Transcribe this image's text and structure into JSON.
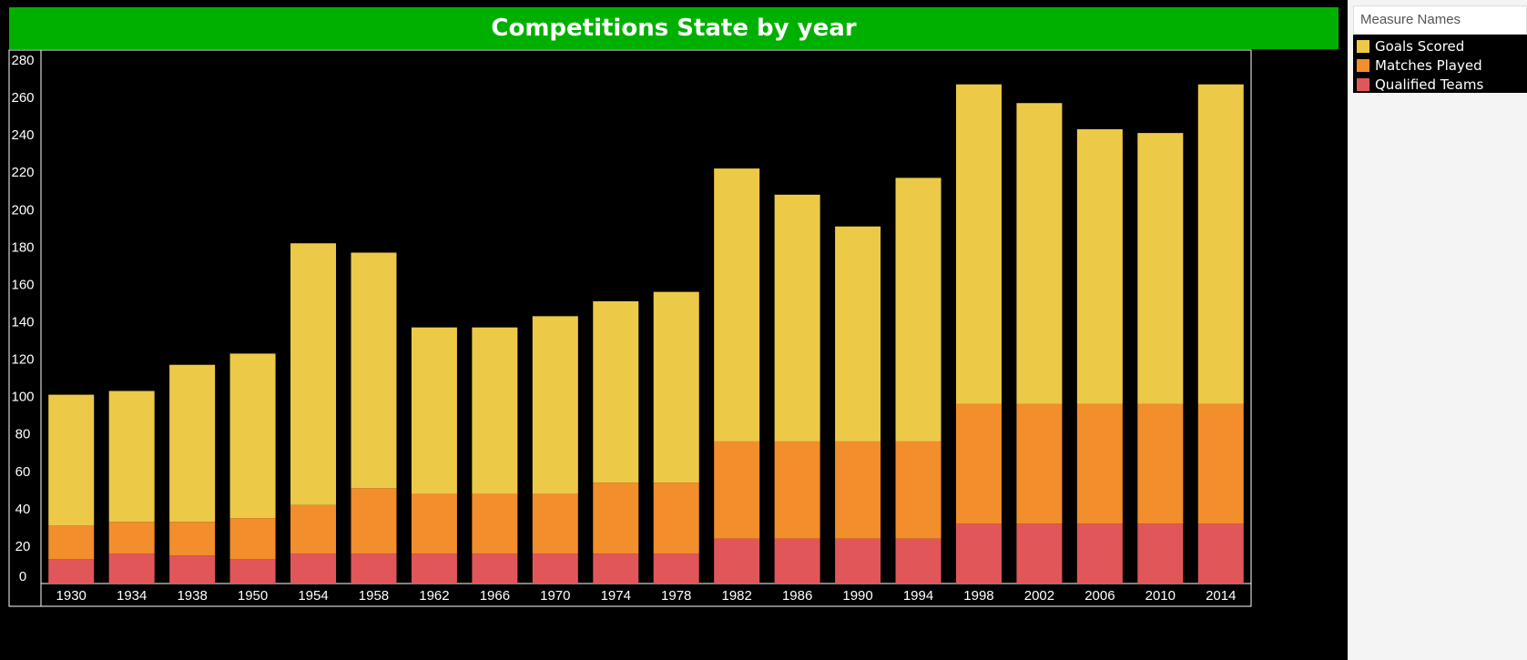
{
  "chart_data": {
    "type": "bar",
    "stacked": true,
    "title": "Competitions State by year",
    "xlabel": "",
    "ylabel": "",
    "ylim": [
      0,
      280
    ],
    "yticks": [
      0,
      20,
      40,
      60,
      80,
      100,
      120,
      140,
      160,
      180,
      200,
      220,
      240,
      260,
      280
    ],
    "categories": [
      "1930",
      "1934",
      "1938",
      "1950",
      "1954",
      "1958",
      "1962",
      "1966",
      "1970",
      "1974",
      "1978",
      "1982",
      "1986",
      "1990",
      "1994",
      "1998",
      "2002",
      "2006",
      "2010",
      "2014"
    ],
    "series": [
      {
        "name": "Qualified Teams",
        "color": "#e15759",
        "values": [
          13,
          16,
          15,
          13,
          16,
          16,
          16,
          16,
          16,
          16,
          16,
          24,
          24,
          24,
          24,
          32,
          32,
          32,
          32,
          32
        ]
      },
      {
        "name": "Matches Played",
        "color": "#f28e2b",
        "values": [
          18,
          17,
          18,
          22,
          26,
          35,
          32,
          32,
          32,
          38,
          38,
          52,
          52,
          52,
          52,
          64,
          64,
          64,
          64,
          64
        ]
      },
      {
        "name": "Goals Scored",
        "color": "#edc948",
        "values": [
          70,
          70,
          84,
          88,
          140,
          126,
          89,
          89,
          95,
          97,
          102,
          146,
          132,
          115,
          141,
          171,
          161,
          147,
          145,
          171
        ]
      }
    ],
    "legend": {
      "title": "Measure Names",
      "position": "right",
      "entries": [
        "Goals Scored",
        "Matches Played",
        "Qualified Teams"
      ]
    },
    "grid": false
  }
}
